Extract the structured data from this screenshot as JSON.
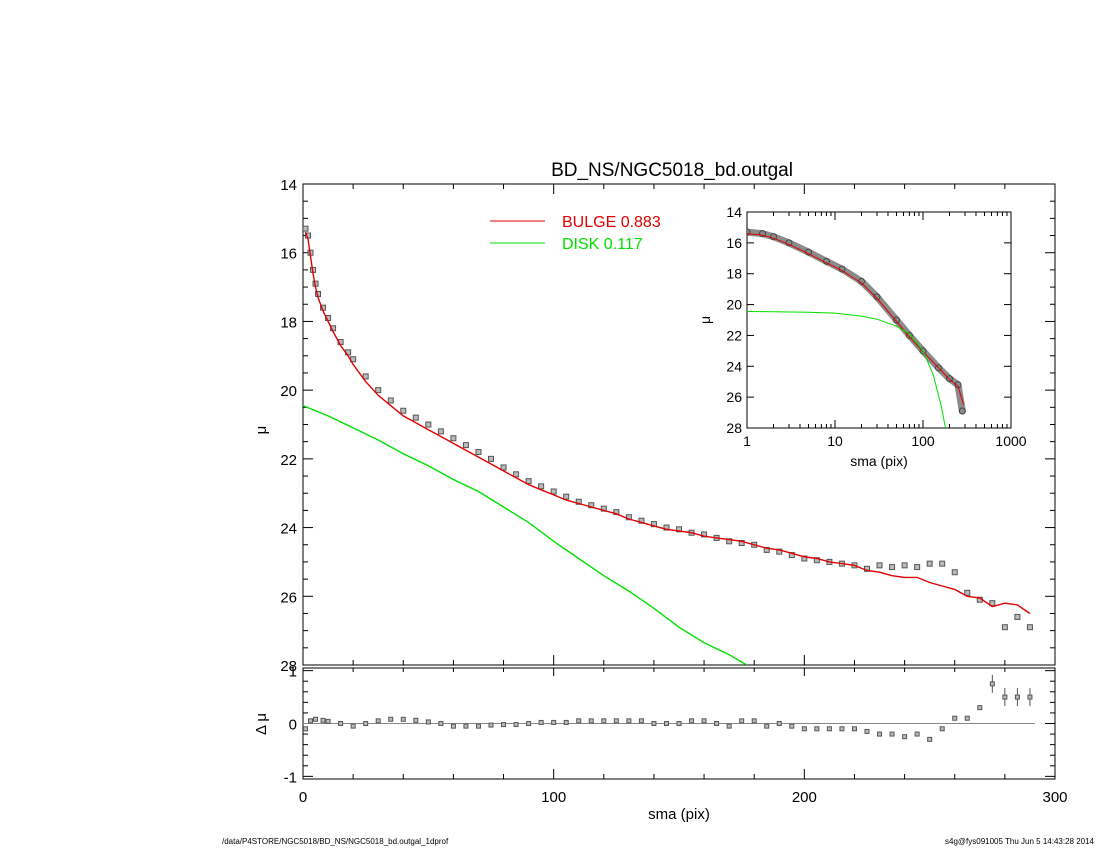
{
  "title": "BD_NS/NGC5018_bd.outgal",
  "footer": {
    "left": "/data/P4STORE/NGC5018/BD_NS/NGC5018_bd.outgal_1dprof",
    "right": "s4g@fys091005  Thu Jun  5 14:43:28 2014"
  },
  "colors": {
    "bulge": "#e00000",
    "disk": "#00e000",
    "data": "#555555",
    "axis": "#000000"
  },
  "chart_data": [
    {
      "type": "line",
      "panel": "main",
      "xlabel": "sma (pix)",
      "ylabel": "μ",
      "xlim": [
        0,
        300
      ],
      "ylim": [
        28,
        14
      ],
      "yticks": [
        "14",
        "16",
        "18",
        "20",
        "22",
        "24",
        "26",
        "28"
      ],
      "legend": [
        {
          "label": "BULGE  0.883",
          "color": "#e00000"
        },
        {
          "label": "DISK  0.117",
          "color": "#00e000"
        }
      ],
      "series": [
        {
          "name": "data",
          "style": "points",
          "x": [
            1,
            2,
            3,
            4,
            5,
            6,
            8,
            10,
            12,
            15,
            18,
            20,
            25,
            30,
            35,
            40,
            45,
            50,
            55,
            60,
            65,
            70,
            75,
            80,
            85,
            90,
            95,
            100,
            105,
            110,
            115,
            120,
            125,
            130,
            135,
            140,
            145,
            150,
            155,
            160,
            165,
            170,
            175,
            180,
            185,
            190,
            195,
            200,
            205,
            210,
            215,
            220,
            225,
            230,
            235,
            240,
            245,
            250,
            255,
            260,
            265,
            270,
            275,
            280,
            285,
            290
          ],
          "y": [
            15.3,
            15.5,
            16.0,
            16.5,
            16.9,
            17.2,
            17.6,
            17.9,
            18.2,
            18.6,
            18.9,
            19.1,
            19.6,
            20.0,
            20.3,
            20.6,
            20.8,
            21.0,
            21.2,
            21.4,
            21.6,
            21.8,
            22.0,
            22.25,
            22.45,
            22.65,
            22.8,
            22.95,
            23.1,
            23.25,
            23.35,
            23.45,
            23.55,
            23.7,
            23.8,
            23.9,
            24.0,
            24.05,
            24.15,
            24.2,
            24.3,
            24.4,
            24.45,
            24.5,
            24.65,
            24.7,
            24.8,
            24.9,
            24.95,
            25.0,
            25.05,
            25.1,
            25.2,
            25.1,
            25.15,
            25.1,
            25.15,
            25.05,
            25.05,
            25.3,
            25.9,
            26.1,
            26.2,
            26.9,
            26.6,
            26.9
          ]
        },
        {
          "name": "BULGE",
          "style": "line",
          "color": "#e00000",
          "x": [
            1,
            2,
            3,
            4,
            5,
            6,
            8,
            10,
            12,
            15,
            18,
            20,
            25,
            30,
            35,
            40,
            45,
            50,
            55,
            60,
            65,
            70,
            75,
            80,
            85,
            90,
            95,
            100,
            105,
            110,
            115,
            120,
            125,
            130,
            135,
            140,
            145,
            150,
            155,
            160,
            165,
            170,
            175,
            180,
            185,
            190,
            195,
            200,
            205,
            210,
            215,
            220,
            225,
            230,
            235,
            240,
            245,
            250,
            255,
            260,
            265,
            270,
            275,
            280,
            285,
            290
          ],
          "y": [
            15.4,
            15.6,
            16.1,
            16.6,
            17.0,
            17.3,
            17.7,
            18.0,
            18.3,
            18.7,
            19.0,
            19.25,
            19.75,
            20.15,
            20.45,
            20.75,
            20.95,
            21.15,
            21.35,
            21.55,
            21.75,
            21.95,
            22.15,
            22.35,
            22.55,
            22.75,
            22.9,
            23.05,
            23.2,
            23.3,
            23.4,
            23.5,
            23.6,
            23.75,
            23.85,
            23.95,
            24.05,
            24.1,
            24.15,
            24.25,
            24.3,
            24.35,
            24.4,
            24.5,
            24.6,
            24.65,
            24.75,
            24.85,
            24.9,
            25.0,
            25.05,
            25.1,
            25.25,
            25.3,
            25.4,
            25.45,
            25.45,
            25.6,
            25.7,
            25.8,
            26.0,
            26.05,
            26.3,
            26.2,
            26.25,
            26.5
          ]
        },
        {
          "name": "DISK",
          "style": "line",
          "color": "#00e000",
          "x": [
            0,
            10,
            20,
            30,
            40,
            50,
            60,
            70,
            80,
            90,
            100,
            110,
            120,
            130,
            140,
            150,
            160,
            170,
            177
          ],
          "y": [
            20.45,
            20.75,
            21.1,
            21.45,
            21.85,
            22.2,
            22.6,
            22.95,
            23.4,
            23.85,
            24.4,
            24.9,
            25.4,
            25.85,
            26.35,
            26.9,
            27.35,
            27.7,
            28.0
          ]
        }
      ]
    },
    {
      "type": "line",
      "panel": "inset",
      "xlabel": "sma (pix)",
      "ylabel": "μ",
      "xscale": "log",
      "xlim": [
        1,
        1000
      ],
      "ylim": [
        28,
        14
      ],
      "xticks": [
        "1",
        "10",
        "100",
        "1000"
      ],
      "yticks": [
        "14",
        "16",
        "18",
        "20",
        "22",
        "24",
        "26",
        "28"
      ],
      "series": [
        {
          "name": "data",
          "style": "points",
          "x": [
            1,
            1.5,
            2,
            3,
            5,
            8,
            12,
            20,
            30,
            50,
            70,
            100,
            150,
            200,
            250,
            280
          ],
          "y": [
            15.3,
            15.4,
            15.6,
            16.0,
            16.6,
            17.2,
            17.7,
            18.5,
            19.5,
            21.0,
            22.0,
            23.0,
            24.1,
            24.8,
            25.2,
            26.9
          ]
        },
        {
          "name": "BULGE",
          "style": "line",
          "color": "#e00000",
          "x": [
            1,
            1.5,
            2,
            3,
            5,
            8,
            12,
            20,
            30,
            50,
            70,
            100,
            150,
            200,
            250,
            290
          ],
          "y": [
            15.4,
            15.5,
            15.7,
            16.1,
            16.7,
            17.3,
            17.8,
            18.6,
            19.6,
            21.1,
            22.1,
            23.05,
            24.1,
            24.85,
            25.3,
            26.5
          ]
        },
        {
          "name": "DISK",
          "style": "line",
          "color": "#00e000",
          "x": [
            1,
            2,
            5,
            10,
            20,
            30,
            50,
            70,
            100,
            130,
            160,
            180
          ],
          "y": [
            20.45,
            20.47,
            20.5,
            20.55,
            20.75,
            20.95,
            21.4,
            21.9,
            23.0,
            24.5,
            26.5,
            28.0
          ]
        }
      ]
    },
    {
      "type": "scatter",
      "panel": "residual",
      "xlabel": "sma (pix)",
      "ylabel": "Δ μ",
      "xlim": [
        0,
        300
      ],
      "ylim": [
        -1.05,
        1.05
      ],
      "xticks": [
        "0",
        "100",
        "200",
        "300"
      ],
      "yticks": [
        "1",
        "0",
        "-1"
      ],
      "series": [
        {
          "name": "residual",
          "x": [
            1,
            3,
            5,
            8,
            10,
            15,
            20,
            25,
            30,
            35,
            40,
            45,
            50,
            55,
            60,
            65,
            70,
            75,
            80,
            85,
            90,
            95,
            100,
            105,
            110,
            115,
            120,
            125,
            130,
            135,
            140,
            145,
            150,
            155,
            160,
            165,
            170,
            175,
            180,
            185,
            190,
            195,
            200,
            205,
            210,
            215,
            220,
            225,
            230,
            235,
            240,
            245,
            250,
            255,
            260,
            265,
            270,
            275,
            280,
            285,
            290
          ],
          "y": [
            -0.1,
            0.05,
            0.08,
            0.06,
            0.04,
            0.0,
            -0.05,
            0.0,
            0.05,
            0.08,
            0.08,
            0.06,
            0.03,
            0.0,
            -0.05,
            -0.05,
            -0.05,
            -0.03,
            -0.02,
            -0.02,
            0.0,
            0.02,
            0.02,
            0.02,
            0.05,
            0.05,
            0.05,
            0.05,
            0.05,
            0.05,
            0.0,
            0.0,
            0.0,
            0.05,
            0.05,
            0.0,
            -0.05,
            0.05,
            0.05,
            -0.05,
            0.0,
            -0.05,
            -0.1,
            -0.1,
            -0.1,
            -0.1,
            -0.1,
            -0.15,
            -0.2,
            -0.2,
            -0.25,
            -0.2,
            -0.3,
            -0.1,
            0.1,
            0.1,
            0.3,
            0.75,
            0.5,
            0.5,
            0.5
          ]
        }
      ]
    }
  ]
}
